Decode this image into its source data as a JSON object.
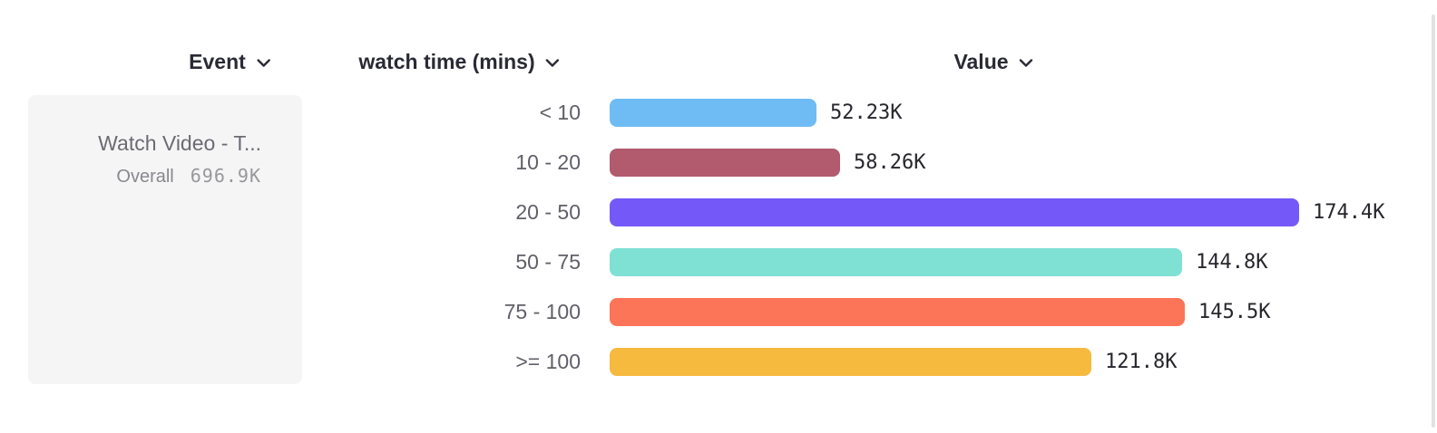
{
  "header": {
    "columns": [
      {
        "label": "Event"
      },
      {
        "label": "watch time (mins)"
      },
      {
        "label": "Value"
      }
    ]
  },
  "event_panel": {
    "event_name": "Watch Video - T...",
    "overall_label": "Overall",
    "overall_value": "696.9K"
  },
  "chart_data": {
    "type": "bar",
    "orientation": "horizontal",
    "title": "",
    "xlabel": "Value",
    "ylabel": "watch time (mins)",
    "categories": [
      "< 10",
      "10 - 20",
      "20 - 50",
      "50 - 75",
      "75 - 100",
      ">= 100"
    ],
    "values": [
      52230,
      58260,
      174400,
      144800,
      145500,
      121800
    ],
    "value_labels": [
      "52.23K",
      "58.26K",
      "174.4K",
      "144.8K",
      "145.5K",
      "121.8K"
    ],
    "bar_colors": [
      "#6FBCF4",
      "#B25A6E",
      "#7559F8",
      "#7FE0D4",
      "#FD7558",
      "#F6BA3F"
    ],
    "xlim": [
      0,
      174400
    ],
    "grid": false,
    "legend": false
  }
}
